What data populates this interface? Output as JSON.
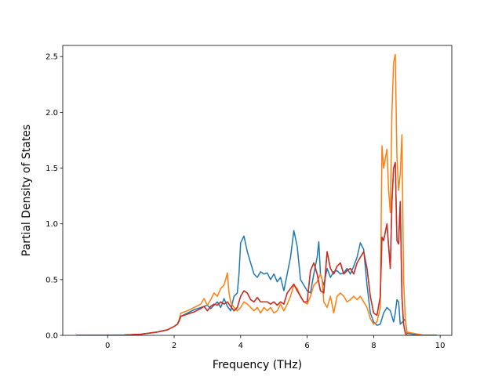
{
  "chart_data": {
    "type": "line",
    "title": "",
    "xlabel": "Frequency (THz)",
    "ylabel": "Partial Density of States",
    "xlim": [
      -1.35,
      10.35
    ],
    "ylim": [
      0,
      2.6
    ],
    "xticks": [
      0,
      2,
      4,
      6,
      8,
      10
    ],
    "yticks": [
      0.0,
      0.5,
      1.0,
      1.5,
      2.0,
      2.5
    ],
    "xtick_labels": [
      "0",
      "2",
      "4",
      "6",
      "8",
      "10"
    ],
    "ytick_labels": [
      "0.0",
      "0.5",
      "1.0",
      "1.5",
      "2.0",
      "2.5"
    ],
    "grid": false,
    "legend": "none",
    "series": [
      {
        "color": "#1f77b4",
        "x": [
          -0.95,
          -0.5,
          0,
          0.5,
          1.0,
          1.5,
          1.8,
          2.0,
          2.1,
          2.15,
          2.2,
          2.4,
          2.6,
          2.8,
          3.0,
          3.1,
          3.2,
          3.3,
          3.4,
          3.5,
          3.6,
          3.7,
          3.8,
          3.9,
          3.95,
          4.0,
          4.1,
          4.2,
          4.3,
          4.4,
          4.5,
          4.6,
          4.7,
          4.8,
          4.9,
          5.0,
          5.1,
          5.2,
          5.3,
          5.4,
          5.5,
          5.6,
          5.7,
          5.8,
          5.9,
          6.0,
          6.1,
          6.2,
          6.3,
          6.35,
          6.4,
          6.5,
          6.6,
          6.7,
          6.8,
          6.9,
          7.0,
          7.1,
          7.2,
          7.3,
          7.4,
          7.5,
          7.6,
          7.7,
          7.8,
          7.9,
          8.0,
          8.1,
          8.2,
          8.3,
          8.4,
          8.5,
          8.6,
          8.65,
          8.7,
          8.75,
          8.8,
          8.9,
          8.95,
          9.0,
          9.5,
          9.9
        ],
        "values": [
          0,
          0,
          0,
          0.003,
          0.01,
          0.03,
          0.05,
          0.08,
          0.1,
          0.14,
          0.17,
          0.2,
          0.23,
          0.25,
          0.27,
          0.24,
          0.27,
          0.3,
          0.25,
          0.33,
          0.26,
          0.22,
          0.35,
          0.38,
          0.55,
          0.83,
          0.89,
          0.75,
          0.65,
          0.55,
          0.52,
          0.57,
          0.55,
          0.56,
          0.5,
          0.55,
          0.48,
          0.52,
          0.4,
          0.55,
          0.7,
          0.94,
          0.8,
          0.5,
          0.45,
          0.4,
          0.38,
          0.55,
          0.7,
          0.84,
          0.55,
          0.45,
          0.6,
          0.52,
          0.57,
          0.58,
          0.55,
          0.56,
          0.6,
          0.55,
          0.62,
          0.7,
          0.83,
          0.77,
          0.45,
          0.2,
          0.12,
          0.09,
          0.1,
          0.2,
          0.25,
          0.22,
          0.12,
          0.2,
          0.32,
          0.3,
          0.1,
          0.13,
          0.15,
          0.02,
          0,
          0
        ]
      },
      {
        "color": "#ff7f0e",
        "x": [
          -0.95,
          -0.5,
          0,
          0.5,
          1.0,
          1.5,
          1.8,
          2.0,
          2.1,
          2.15,
          2.2,
          2.4,
          2.6,
          2.8,
          2.9,
          3.0,
          3.1,
          3.2,
          3.3,
          3.4,
          3.5,
          3.55,
          3.6,
          3.65,
          3.7,
          3.8,
          3.9,
          4.0,
          4.1,
          4.2,
          4.3,
          4.4,
          4.5,
          4.6,
          4.7,
          4.8,
          4.9,
          5.0,
          5.1,
          5.2,
          5.3,
          5.4,
          5.5,
          5.6,
          5.7,
          5.8,
          5.9,
          6.0,
          6.1,
          6.2,
          6.3,
          6.4,
          6.45,
          6.5,
          6.6,
          6.7,
          6.8,
          6.9,
          7.0,
          7.1,
          7.2,
          7.3,
          7.4,
          7.5,
          7.6,
          7.7,
          7.8,
          7.9,
          8.0,
          8.1,
          8.2,
          8.25,
          8.3,
          8.4,
          8.45,
          8.5,
          8.55,
          8.6,
          8.65,
          8.7,
          8.75,
          8.8,
          8.85,
          8.9,
          8.95,
          9.0,
          9.5,
          9.9
        ],
        "values": [
          0,
          0,
          0,
          0.003,
          0.01,
          0.03,
          0.05,
          0.08,
          0.1,
          0.14,
          0.2,
          0.22,
          0.25,
          0.28,
          0.33,
          0.27,
          0.32,
          0.38,
          0.35,
          0.42,
          0.45,
          0.5,
          0.56,
          0.38,
          0.3,
          0.25,
          0.22,
          0.25,
          0.3,
          0.28,
          0.25,
          0.22,
          0.25,
          0.2,
          0.25,
          0.22,
          0.25,
          0.2,
          0.22,
          0.28,
          0.22,
          0.28,
          0.35,
          0.45,
          0.42,
          0.35,
          0.3,
          0.28,
          0.35,
          0.45,
          0.48,
          0.55,
          0.5,
          0.3,
          0.25,
          0.35,
          0.2,
          0.35,
          0.38,
          0.35,
          0.3,
          0.32,
          0.35,
          0.32,
          0.35,
          0.3,
          0.25,
          0.15,
          0.1,
          0.12,
          0.25,
          1.7,
          1.5,
          1.67,
          1.3,
          1.1,
          2.0,
          2.45,
          2.52,
          1.6,
          1.3,
          1.45,
          1.8,
          0.5,
          0.15,
          0.03,
          0,
          0
        ]
      },
      {
        "color": "#2ca02c",
        "x": [
          -0.95,
          -0.5,
          0,
          0.5,
          1.0,
          1.5,
          1.8,
          2.0,
          2.1,
          2.15,
          2.2,
          2.4,
          2.6,
          2.8,
          2.9,
          3.0,
          3.1,
          3.2,
          3.3,
          3.4,
          3.5,
          3.6,
          3.7,
          3.8,
          3.9,
          4.0,
          4.1,
          4.2,
          4.3,
          4.4,
          4.5,
          4.6,
          4.7,
          4.8,
          4.9,
          5.0,
          5.1,
          5.2,
          5.3,
          5.4,
          5.5,
          5.6,
          5.7,
          5.8,
          5.9,
          6.0,
          6.1,
          6.2,
          6.3,
          6.4,
          6.5,
          6.6,
          6.7,
          6.8,
          6.9,
          7.0,
          7.1,
          7.2,
          7.3,
          7.4,
          7.5,
          7.6,
          7.7,
          7.8,
          7.9,
          8.0,
          8.1,
          8.2,
          8.25,
          8.3,
          8.4,
          8.45,
          8.5,
          8.55,
          8.6,
          8.65,
          8.7,
          8.75,
          8.8,
          8.85,
          8.9,
          8.95,
          9.0,
          9.5,
          9.9
        ],
        "values": [
          0,
          0,
          0,
          0.003,
          0.01,
          0.03,
          0.05,
          0.08,
          0.1,
          0.13,
          0.17,
          0.19,
          0.21,
          0.24,
          0.26,
          0.22,
          0.26,
          0.28,
          0.27,
          0.3,
          0.28,
          0.3,
          0.26,
          0.22,
          0.25,
          0.35,
          0.4,
          0.38,
          0.32,
          0.3,
          0.34,
          0.3,
          0.3,
          0.3,
          0.28,
          0.3,
          0.27,
          0.3,
          0.28,
          0.38,
          0.42,
          0.46,
          0.4,
          0.35,
          0.3,
          0.3,
          0.58,
          0.65,
          0.55,
          0.4,
          0.38,
          0.75,
          0.6,
          0.55,
          0.62,
          0.65,
          0.55,
          0.58,
          0.6,
          0.55,
          0.65,
          0.7,
          0.75,
          0.6,
          0.35,
          0.2,
          0.18,
          0.35,
          0.88,
          0.85,
          1.0,
          0.8,
          0.6,
          1.2,
          1.5,
          1.55,
          0.85,
          0.82,
          1.2,
          0.35,
          0.1,
          0.02,
          0,
          0,
          0
        ]
      },
      {
        "color": "#d62728",
        "x": [
          -0.95,
          -0.5,
          0,
          0.5,
          1.0,
          1.5,
          1.8,
          2.0,
          2.1,
          2.15,
          2.2,
          2.4,
          2.6,
          2.8,
          2.9,
          3.0,
          3.1,
          3.2,
          3.3,
          3.4,
          3.5,
          3.6,
          3.7,
          3.8,
          3.9,
          4.0,
          4.1,
          4.2,
          4.3,
          4.4,
          4.5,
          4.6,
          4.7,
          4.8,
          4.9,
          5.0,
          5.1,
          5.2,
          5.3,
          5.4,
          5.5,
          5.6,
          5.7,
          5.8,
          5.9,
          6.0,
          6.1,
          6.2,
          6.3,
          6.4,
          6.5,
          6.6,
          6.7,
          6.8,
          6.9,
          7.0,
          7.1,
          7.2,
          7.3,
          7.4,
          7.5,
          7.6,
          7.7,
          7.8,
          7.9,
          8.0,
          8.1,
          8.2,
          8.25,
          8.3,
          8.4,
          8.45,
          8.5,
          8.55,
          8.6,
          8.65,
          8.7,
          8.75,
          8.8,
          8.85,
          8.9,
          8.95,
          9.0,
          9.5,
          9.9
        ],
        "values": [
          0,
          0,
          0,
          0.003,
          0.01,
          0.03,
          0.05,
          0.08,
          0.1,
          0.13,
          0.17,
          0.19,
          0.21,
          0.24,
          0.26,
          0.22,
          0.26,
          0.28,
          0.27,
          0.3,
          0.28,
          0.3,
          0.26,
          0.22,
          0.25,
          0.35,
          0.4,
          0.38,
          0.32,
          0.3,
          0.34,
          0.3,
          0.3,
          0.3,
          0.28,
          0.3,
          0.27,
          0.3,
          0.28,
          0.38,
          0.42,
          0.46,
          0.4,
          0.35,
          0.3,
          0.3,
          0.58,
          0.65,
          0.55,
          0.4,
          0.38,
          0.75,
          0.6,
          0.55,
          0.62,
          0.65,
          0.55,
          0.58,
          0.6,
          0.55,
          0.65,
          0.7,
          0.75,
          0.6,
          0.35,
          0.2,
          0.18,
          0.35,
          0.88,
          0.85,
          1.0,
          0.8,
          0.6,
          1.2,
          1.5,
          1.55,
          0.85,
          0.82,
          1.2,
          0.35,
          0.1,
          0.02,
          0,
          0,
          0
        ]
      }
    ]
  }
}
